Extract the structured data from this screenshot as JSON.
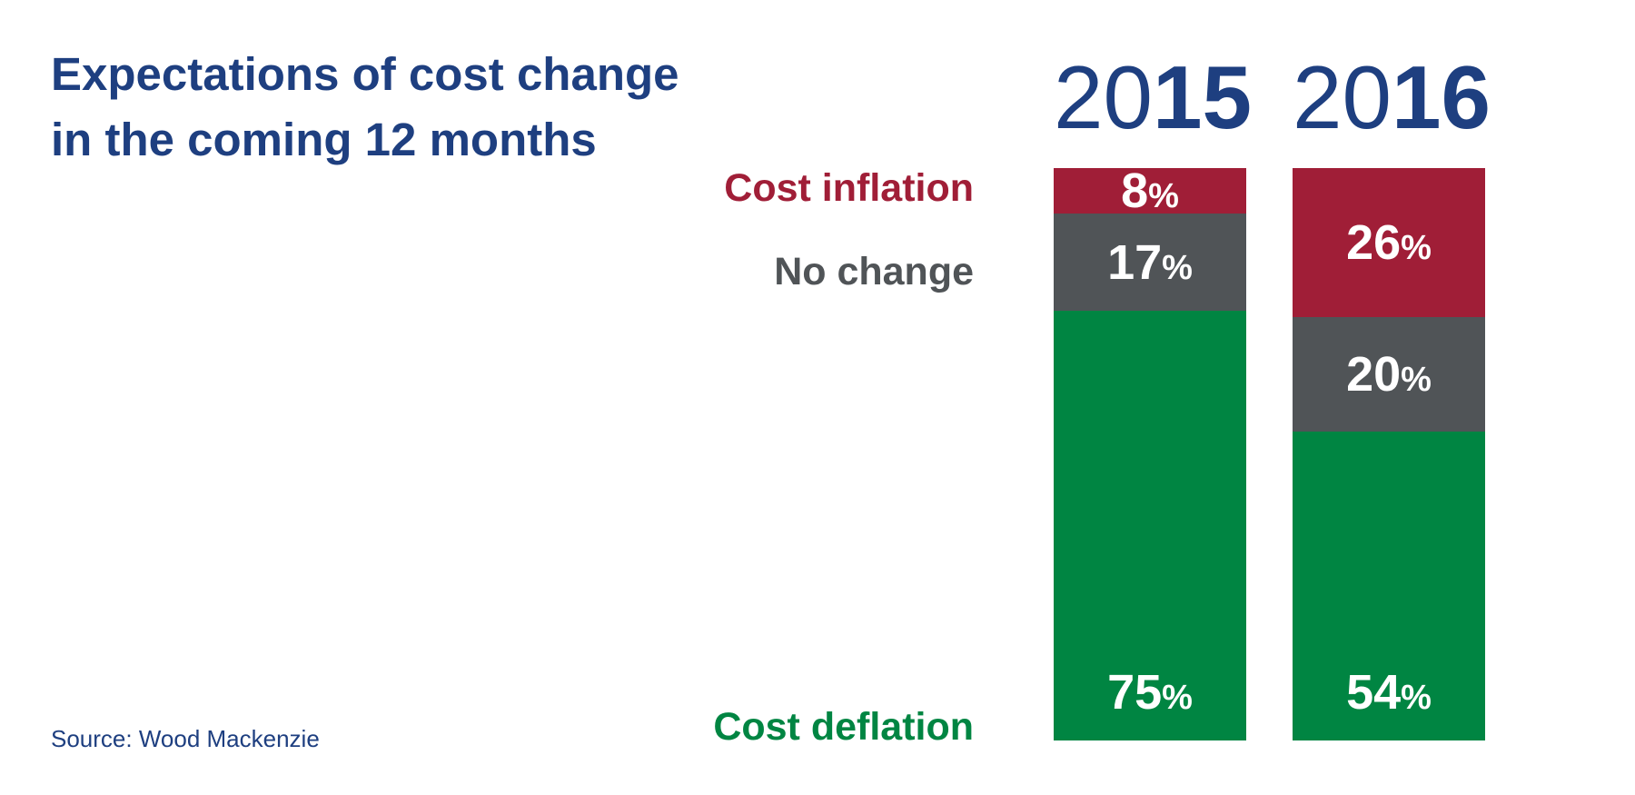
{
  "title": {
    "line1": "Expectations of cost change",
    "line2": "in the coming 12 months"
  },
  "source": "Source: Wood Mackenzie",
  "colors": {
    "inflation": "#a01e37",
    "no_change": "#505457",
    "deflation": "#008542",
    "title": "#1e3f80"
  },
  "chart_data": {
    "type": "bar",
    "stacked": true,
    "categories": [
      "2015",
      "2016"
    ],
    "category_labels": [
      {
        "a": "20",
        "b": "15"
      },
      {
        "a": "20",
        "b": "16"
      }
    ],
    "series": [
      {
        "name": "Cost inflation",
        "values": [
          8,
          26
        ],
        "color": "#a01e37",
        "labels": [
          "8",
          "26"
        ]
      },
      {
        "name": "No change",
        "values": [
          17,
          20
        ],
        "color": "#505457",
        "labels": [
          "17",
          "20"
        ]
      },
      {
        "name": "Cost deflation",
        "values": [
          75,
          54
        ],
        "color": "#008542",
        "labels": [
          "75",
          "54"
        ]
      }
    ],
    "value_suffix": "%",
    "ylim": [
      0,
      100
    ]
  }
}
